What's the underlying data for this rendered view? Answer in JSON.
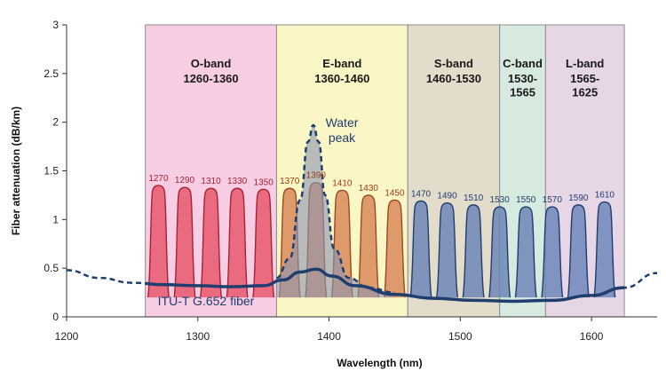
{
  "chart_data": {
    "type": "line",
    "xlabel": "Wavelength (nm)",
    "ylabel": "Fiber attenuation (dB/km)",
    "xlim": [
      1200,
      1650
    ],
    "ylim": [
      0,
      3
    ],
    "x_ticks": [
      "1200",
      "1300",
      "1400",
      "1500",
      "1600"
    ],
    "y_ticks": [
      "0",
      "0.5",
      "1",
      "1.5",
      "2",
      "2.5",
      "3"
    ],
    "bands": [
      {
        "name": "O-band",
        "range_label": "1260-1360",
        "start": 1260,
        "end": 1360,
        "color": "#f6cde3"
      },
      {
        "name": "E-band",
        "range_label": "1360-1460",
        "start": 1360,
        "end": 1460,
        "color": "#fbf6c6"
      },
      {
        "name": "S-band",
        "range_label": "1460-1530",
        "start": 1460,
        "end": 1530,
        "color": "#e3dccb"
      },
      {
        "name": "C-band",
        "range_label": "1530-\n1565",
        "start": 1530,
        "end": 1565,
        "color": "#d7eadf"
      },
      {
        "name": "L-band",
        "range_label": "1565-\n1625",
        "start": 1565,
        "end": 1625,
        "color": "#e6d6e6"
      }
    ],
    "channels": {
      "wavelengths": [
        1270,
        1290,
        1310,
        1330,
        1350,
        1370,
        1390,
        1410,
        1430,
        1450,
        1470,
        1490,
        1510,
        1530,
        1550,
        1570,
        1590,
        1610
      ],
      "labels": [
        "1270",
        "1290",
        "1310",
        "1330",
        "1350",
        "1370",
        "1390",
        "1410",
        "1430",
        "1450",
        "1470",
        "1490",
        "1510",
        "1530",
        "1550",
        "1570",
        "1590",
        "1610"
      ],
      "peak_levels": [
        1.35,
        1.33,
        1.32,
        1.32,
        1.31,
        1.32,
        1.38,
        1.3,
        1.25,
        1.2,
        1.19,
        1.17,
        1.15,
        1.13,
        1.13,
        1.13,
        1.15,
        1.18
      ],
      "channel_width": 16
    },
    "series": [
      {
        "name": "ITU-T G.652 fiber",
        "x": [
          1200,
          1225,
          1250,
          1275,
          1300,
          1325,
          1350,
          1365,
          1378,
          1390,
          1402,
          1420,
          1450,
          1480,
          1510,
          1540,
          1570,
          1600,
          1625,
          1650
        ],
        "values": [
          0.48,
          0.4,
          0.35,
          0.33,
          0.32,
          0.31,
          0.32,
          0.38,
          0.46,
          0.49,
          0.42,
          0.32,
          0.23,
          0.19,
          0.17,
          0.16,
          0.17,
          0.22,
          0.3,
          0.45
        ],
        "color": "#1f3e6e"
      },
      {
        "name": "Water peak",
        "x": [
          1360,
          1370,
          1378,
          1384,
          1388,
          1392,
          1397,
          1404,
          1415,
          1430,
          1450
        ],
        "values": [
          0.4,
          0.6,
          1.2,
          1.8,
          1.97,
          1.8,
          1.25,
          0.7,
          0.4,
          0.3,
          0.25
        ],
        "color": "#1f3e6e"
      }
    ],
    "annotations": {
      "water_peak": "Water\npeak",
      "fiber_label": "ITU-T G.652 fiber"
    }
  }
}
